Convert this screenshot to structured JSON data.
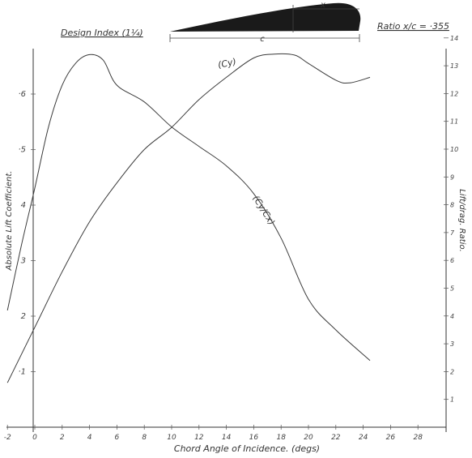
{
  "chart_data": {
    "type": "line",
    "title": "Design Index (1¼)",
    "ratio_label": "Ratio x/c = ·355",
    "airfoil_labels": {
      "chord": "c",
      "x": "x"
    },
    "xlabel": "Chord Angle of Incidence. (degs)",
    "ylabel_left": "Absolute Lift Coefficient.",
    "ylabel_right": "Lift/drag. Ratio.",
    "xlim": [
      -2,
      30
    ],
    "ylim_left": [
      0,
      0.7
    ],
    "ylim_right": [
      0,
      14
    ],
    "x_ticks": [
      "-2",
      "0",
      "2",
      "4",
      "6",
      "8",
      "10",
      "12",
      "14",
      "16",
      "18",
      "20",
      "22",
      "24",
      "26",
      "28"
    ],
    "y_left_ticks": [
      "·1",
      "2",
      "3",
      "4",
      "·5",
      "·6"
    ],
    "y_right_ticks": [
      "1",
      "2",
      "3",
      "4",
      "5",
      "6",
      "7",
      "8",
      "9",
      "10",
      "11",
      "12",
      "13",
      "14"
    ],
    "grid": false,
    "legend": "curve labels on chart",
    "series": [
      {
        "name": "(Cy)",
        "axis": "left",
        "x": [
          -2,
          0,
          2,
          4,
          6,
          8,
          10,
          12,
          14,
          16,
          17.5,
          19,
          20,
          22,
          23,
          24.5
        ],
        "y": [
          0.08,
          0.18,
          0.28,
          0.37,
          0.44,
          0.5,
          0.54,
          0.59,
          0.63,
          0.665,
          0.672,
          0.67,
          0.655,
          0.625,
          0.62,
          0.63
        ]
      },
      {
        "name": "(Cy/Cx)",
        "axis": "right",
        "x": [
          -2,
          -1,
          0,
          1,
          2,
          3,
          4,
          5,
          6,
          8,
          10,
          12,
          14,
          16,
          18,
          20,
          22,
          24.5
        ],
        "y": [
          4.2,
          6.5,
          8.6,
          10.8,
          12.3,
          13.1,
          13.4,
          13.2,
          12.3,
          11.7,
          10.8,
          10.1,
          9.4,
          8.4,
          6.8,
          4.6,
          3.5,
          2.4
        ]
      }
    ]
  }
}
